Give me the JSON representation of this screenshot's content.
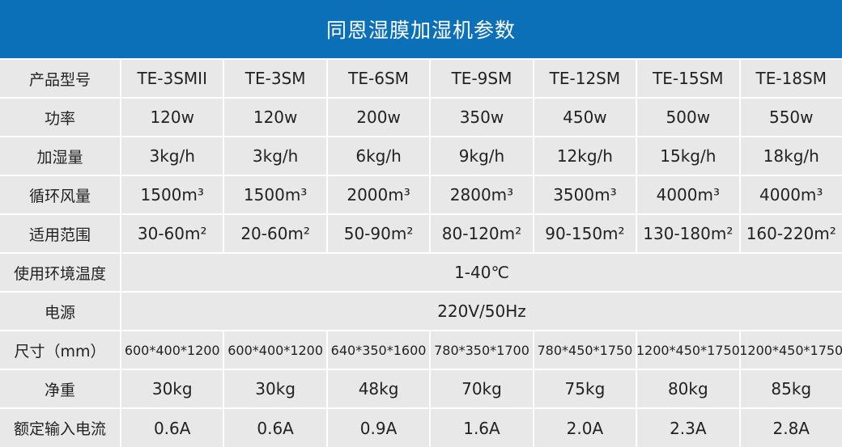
{
  "header": {
    "title": "同恩湿膜加湿机参数"
  },
  "colors": {
    "header_bg": "#0c70b8",
    "header_text": "#ffffff",
    "cell_bg": "#e8e8e8",
    "border": "#ffffff",
    "text": "#222222"
  },
  "rows": [
    {
      "label": "产品型号",
      "values": [
        "TE-3SMII",
        "TE-3SM",
        "TE-6SM",
        "TE-9SM",
        "TE-12SM",
        "TE-15SM",
        "TE-18SM"
      ]
    },
    {
      "label": "功率",
      "values": [
        "120w",
        "120w",
        "200w",
        "350w",
        "450w",
        "500w",
        "550w"
      ]
    },
    {
      "label": "加湿量",
      "values": [
        "3kg/h",
        "3kg/h",
        "6kg/h",
        "9kg/h",
        "12kg/h",
        "15kg/h",
        "18kg/h"
      ]
    },
    {
      "label": "循环风量",
      "values": [
        "1500m³",
        "1500m³",
        "2000m³",
        "2800m³",
        "3500m³",
        "4000m³",
        "4000m³"
      ]
    },
    {
      "label": "适用范围",
      "values": [
        "30-60m²",
        "20-60m²",
        "50-90m²",
        "80-120m²",
        "90-150m²",
        "130-180m²",
        "160-220m²"
      ]
    },
    {
      "label": "使用环境温度",
      "span": "1-40℃"
    },
    {
      "label": "电源",
      "span": "220V/50Hz"
    },
    {
      "label": "尺寸（mm）",
      "values": [
        "600*400*1200",
        "600*400*1200",
        "640*350*1600",
        "780*350*1700",
        "780*450*1750",
        "1200*450*1750",
        "1200*450*1750"
      ]
    },
    {
      "label": "净重",
      "values": [
        "30kg",
        "30kg",
        "48kg",
        "70kg",
        "75kg",
        "80kg",
        "85kg"
      ]
    },
    {
      "label": "额定输入电流",
      "values": [
        "0.6A",
        "0.6A",
        "0.9A",
        "1.6A",
        "2.0A",
        "2.3A",
        "2.8A"
      ]
    }
  ]
}
